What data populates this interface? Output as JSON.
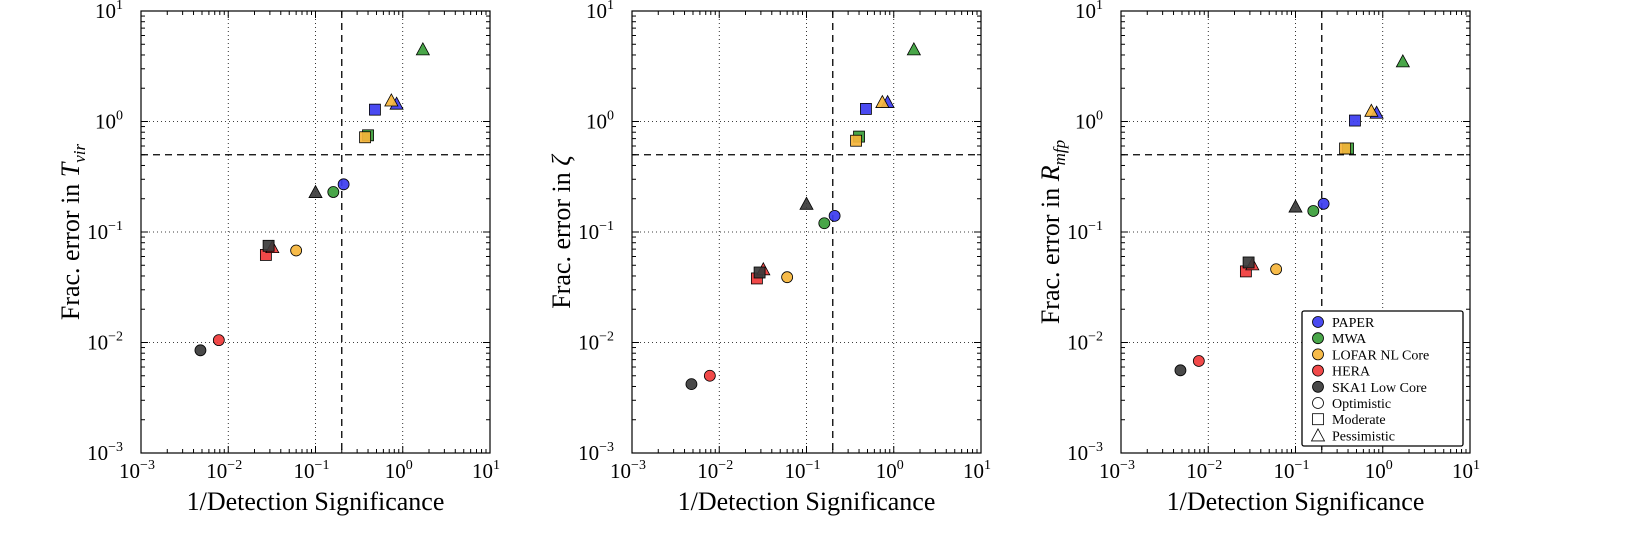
{
  "colors": {
    "PAPER": "#3b3bf0",
    "MWA": "#3a9e3a",
    "LOFAR NL Core": "#f6b53a",
    "HERA": "#f03a3a",
    "SKA1 Low Core": "#3a3a3a"
  },
  "chart_data": [
    {
      "type": "scatter",
      "xlabel": "1/Detection Significance",
      "ylabel": "Frac. error in ",
      "ylabel_var": "T",
      "ylabel_sub": "vir",
      "xscale": "log",
      "yscale": "log",
      "xlim": [
        0.001,
        10
      ],
      "ylim": [
        0.001,
        10
      ],
      "grid": true,
      "reference_lines": {
        "x": 0.2,
        "y": 0.5
      },
      "points": [
        {
          "telescope": "PAPER",
          "scenario": "Optimistic",
          "x": 0.21,
          "y": 0.27
        },
        {
          "telescope": "PAPER",
          "scenario": "Moderate",
          "x": 0.48,
          "y": 1.28
        },
        {
          "telescope": "PAPER",
          "scenario": "Pessimistic",
          "x": 0.85,
          "y": 1.45
        },
        {
          "telescope": "MWA",
          "scenario": "Optimistic",
          "x": 0.16,
          "y": 0.23
        },
        {
          "telescope": "MWA",
          "scenario": "Moderate",
          "x": 0.4,
          "y": 0.75
        },
        {
          "telescope": "MWA",
          "scenario": "Pessimistic",
          "x": 1.7,
          "y": 4.5
        },
        {
          "telescope": "LOFAR NL Core",
          "scenario": "Optimistic",
          "x": 0.06,
          "y": 0.068
        },
        {
          "telescope": "LOFAR NL Core",
          "scenario": "Moderate",
          "x": 0.37,
          "y": 0.72
        },
        {
          "telescope": "LOFAR NL Core",
          "scenario": "Pessimistic",
          "x": 0.74,
          "y": 1.55
        },
        {
          "telescope": "HERA",
          "scenario": "Optimistic",
          "x": 0.0078,
          "y": 0.0105
        },
        {
          "telescope": "HERA",
          "scenario": "Moderate",
          "x": 0.027,
          "y": 0.062
        },
        {
          "telescope": "HERA",
          "scenario": "Pessimistic",
          "x": 0.032,
          "y": 0.073
        },
        {
          "telescope": "SKA1 Low Core",
          "scenario": "Optimistic",
          "x": 0.0048,
          "y": 0.0085
        },
        {
          "telescope": "SKA1 Low Core",
          "scenario": "Moderate",
          "x": 0.029,
          "y": 0.075
        },
        {
          "telescope": "SKA1 Low Core",
          "scenario": "Pessimistic",
          "x": 0.1,
          "y": 0.23
        }
      ]
    },
    {
      "type": "scatter",
      "xlabel": "1/Detection Significance",
      "ylabel": "Frac. error in ",
      "ylabel_var": "ζ",
      "ylabel_sub": "",
      "xscale": "log",
      "yscale": "log",
      "xlim": [
        0.001,
        10
      ],
      "ylim": [
        0.001,
        10
      ],
      "grid": true,
      "reference_lines": {
        "x": 0.2,
        "y": 0.5
      },
      "points": [
        {
          "telescope": "PAPER",
          "scenario": "Optimistic",
          "x": 0.21,
          "y": 0.14
        },
        {
          "telescope": "PAPER",
          "scenario": "Moderate",
          "x": 0.48,
          "y": 1.3
        },
        {
          "telescope": "PAPER",
          "scenario": "Pessimistic",
          "x": 0.85,
          "y": 1.5
        },
        {
          "telescope": "MWA",
          "scenario": "Optimistic",
          "x": 0.16,
          "y": 0.12
        },
        {
          "telescope": "MWA",
          "scenario": "Moderate",
          "x": 0.4,
          "y": 0.73
        },
        {
          "telescope": "MWA",
          "scenario": "Pessimistic",
          "x": 1.7,
          "y": 4.5
        },
        {
          "telescope": "LOFAR NL Core",
          "scenario": "Optimistic",
          "x": 0.06,
          "y": 0.039
        },
        {
          "telescope": "LOFAR NL Core",
          "scenario": "Moderate",
          "x": 0.37,
          "y": 0.67
        },
        {
          "telescope": "LOFAR NL Core",
          "scenario": "Pessimistic",
          "x": 0.74,
          "y": 1.5
        },
        {
          "telescope": "HERA",
          "scenario": "Optimistic",
          "x": 0.0078,
          "y": 0.005
        },
        {
          "telescope": "HERA",
          "scenario": "Moderate",
          "x": 0.027,
          "y": 0.038
        },
        {
          "telescope": "HERA",
          "scenario": "Pessimistic",
          "x": 0.032,
          "y": 0.046
        },
        {
          "telescope": "SKA1 Low Core",
          "scenario": "Optimistic",
          "x": 0.0048,
          "y": 0.0042
        },
        {
          "telescope": "SKA1 Low Core",
          "scenario": "Moderate",
          "x": 0.029,
          "y": 0.043
        },
        {
          "telescope": "SKA1 Low Core",
          "scenario": "Pessimistic",
          "x": 0.1,
          "y": 0.18
        }
      ]
    },
    {
      "type": "scatter",
      "xlabel": "1/Detection Significance",
      "ylabel": "Frac. error in ",
      "ylabel_var": "R",
      "ylabel_sub": "mfp",
      "xscale": "log",
      "yscale": "log",
      "xlim": [
        0.001,
        10
      ],
      "ylim": [
        0.001,
        10
      ],
      "grid": true,
      "reference_lines": {
        "x": 0.2,
        "y": 0.5
      },
      "legend": {
        "placement": "lower-right",
        "entries": [
          {
            "label": "PAPER",
            "marker": "circle",
            "telescope": "PAPER"
          },
          {
            "label": "MWA",
            "marker": "circle",
            "telescope": "MWA"
          },
          {
            "label": "LOFAR NL Core",
            "marker": "circle",
            "telescope": "LOFAR NL Core"
          },
          {
            "label": "HERA",
            "marker": "circle",
            "telescope": "HERA"
          },
          {
            "label": "SKA1 Low Core",
            "marker": "circle",
            "telescope": "SKA1 Low Core"
          },
          {
            "label": "Optimistic",
            "marker": "circle",
            "telescope": ""
          },
          {
            "label": "Moderate",
            "marker": "square",
            "telescope": ""
          },
          {
            "label": "Pessimistic",
            "marker": "triangle",
            "telescope": ""
          }
        ]
      },
      "points": [
        {
          "telescope": "PAPER",
          "scenario": "Optimistic",
          "x": 0.21,
          "y": 0.18
        },
        {
          "telescope": "PAPER",
          "scenario": "Moderate",
          "x": 0.48,
          "y": 1.02
        },
        {
          "telescope": "PAPER",
          "scenario": "Pessimistic",
          "x": 0.85,
          "y": 1.2
        },
        {
          "telescope": "MWA",
          "scenario": "Optimistic",
          "x": 0.16,
          "y": 0.155
        },
        {
          "telescope": "MWA",
          "scenario": "Moderate",
          "x": 0.4,
          "y": 0.57
        },
        {
          "telescope": "MWA",
          "scenario": "Pessimistic",
          "x": 1.7,
          "y": 3.5
        },
        {
          "telescope": "LOFAR NL Core",
          "scenario": "Optimistic",
          "x": 0.06,
          "y": 0.046
        },
        {
          "telescope": "LOFAR NL Core",
          "scenario": "Moderate",
          "x": 0.37,
          "y": 0.57
        },
        {
          "telescope": "LOFAR NL Core",
          "scenario": "Pessimistic",
          "x": 0.74,
          "y": 1.25
        },
        {
          "telescope": "HERA",
          "scenario": "Optimistic",
          "x": 0.0078,
          "y": 0.0068
        },
        {
          "telescope": "HERA",
          "scenario": "Moderate",
          "x": 0.027,
          "y": 0.044
        },
        {
          "telescope": "HERA",
          "scenario": "Pessimistic",
          "x": 0.032,
          "y": 0.051
        },
        {
          "telescope": "SKA1 Low Core",
          "scenario": "Optimistic",
          "x": 0.0048,
          "y": 0.0056
        },
        {
          "telescope": "SKA1 Low Core",
          "scenario": "Moderate",
          "x": 0.029,
          "y": 0.053
        },
        {
          "telescope": "SKA1 Low Core",
          "scenario": "Pessimistic",
          "x": 0.1,
          "y": 0.17
        }
      ]
    }
  ]
}
